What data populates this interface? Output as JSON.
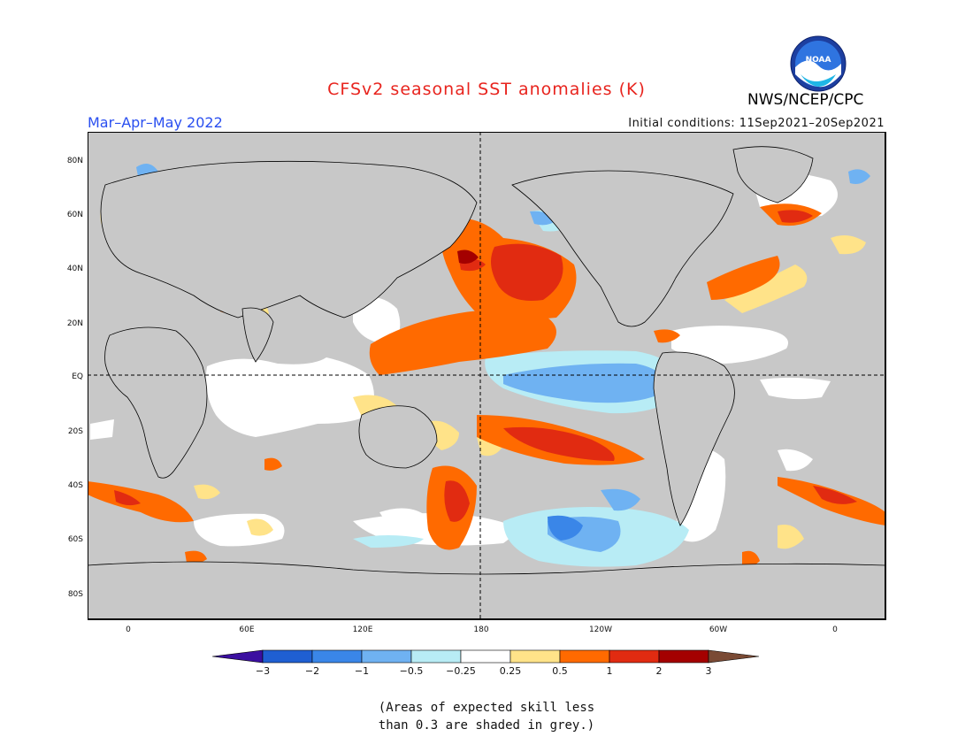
{
  "title": "CFSv2 seasonal SST anomalies (K)",
  "agency": "NWS/NCEP/CPC",
  "logo_text": "NOAA",
  "season": "Mar–Apr–May 2022",
  "initial_conditions": "Initial conditions: 11Sep2021–20Sep2021",
  "lat_labels": [
    "80N",
    "60N",
    "40N",
    "20N",
    "EQ",
    "20S",
    "40S",
    "60S",
    "80S"
  ],
  "lon_labels": [
    "0",
    "60E",
    "120E",
    "180",
    "120W",
    "60W",
    "0"
  ],
  "colorbar": {
    "tick_labels": [
      "−3",
      "−2",
      "−1",
      "−0.5",
      "−0.25",
      "0.25",
      "0.5",
      "1",
      "2",
      "3"
    ],
    "colors": [
      "#3b0fa0",
      "#1f5fd2",
      "#3a86e8",
      "#6fb2f2",
      "#b8ecf5",
      "#ffffff",
      "#ffe389",
      "#ff6a00",
      "#e12b11",
      "#a40000",
      "#7a4a34"
    ]
  },
  "skill_note_line1": "(Areas of expected skill less",
  "skill_note_line2": "than 0.3 are shaded in grey.)",
  "map_colors": {
    "grey": "#c8c8c8",
    "white": "#ffffff",
    "pale_blue": "#b8ecf5",
    "light_blue": "#6fb2f2",
    "blue": "#3a86e8",
    "pale_yellow": "#ffe389",
    "orange": "#ff6a00",
    "red": "#e12b11",
    "dark_red": "#a40000"
  }
}
